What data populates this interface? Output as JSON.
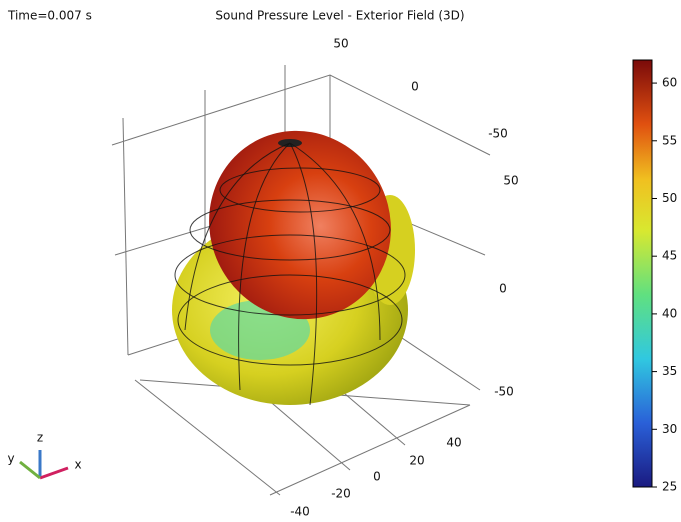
{
  "chart_data": {
    "type": "surface3d",
    "title": "Sound Pressure Level - Exterior Field (3D)",
    "annotation": "Time=0.007 s",
    "colorbar": {
      "clim": [
        25,
        62
      ],
      "ticks": [
        25,
        30,
        35,
        40,
        45,
        50,
        55,
        60
      ]
    },
    "xticks": [
      -40,
      -20,
      0,
      20,
      40
    ],
    "yticks": [
      50,
      0,
      -50
    ],
    "zticks": [
      50,
      0,
      -50
    ],
    "axis_labels": {
      "x": "x",
      "y": "y",
      "z": "z"
    }
  }
}
